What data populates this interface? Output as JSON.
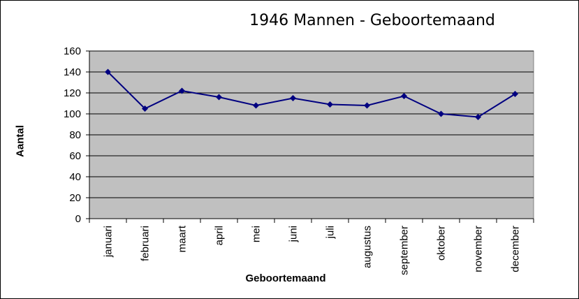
{
  "chart_data": {
    "type": "line",
    "title": "1946 Mannen - Geboortemaand",
    "xlabel": "Geboortemaand",
    "ylabel": "Aantal",
    "categories": [
      "januari",
      "februari",
      "maart",
      "april",
      "mei",
      "juni",
      "juli",
      "augustus",
      "september",
      "oktober",
      "november",
      "december"
    ],
    "series": [
      {
        "values": [
          140,
          105,
          122,
          116,
          108,
          115,
          109,
          108,
          117,
          100,
          97,
          119
        ]
      }
    ],
    "ylim": [
      0,
      160
    ],
    "yticks": [
      0,
      20,
      40,
      60,
      80,
      100,
      120,
      140,
      160
    ],
    "grid": true,
    "legend": "none",
    "colors": {
      "plot_background": "#c0c0c0",
      "line": "#000080",
      "gridline": "#000000"
    }
  }
}
